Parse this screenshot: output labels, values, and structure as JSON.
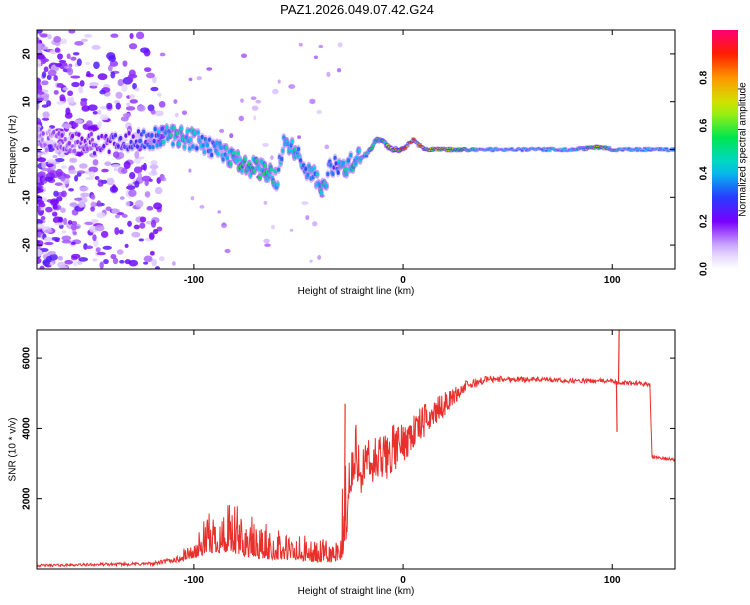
{
  "title": "PAZ1.2026.049.07.42.G24",
  "chart_data": [
    {
      "type": "heatmap",
      "name": "spectrogram",
      "title": "PAZ1.2026.049.07.42.G24",
      "xlabel": "Height of straight line (km)",
      "ylabel": "Frequency (Hz)",
      "xlim": [
        -175,
        130
      ],
      "ylim": [
        -25,
        25
      ],
      "xticks": [
        -100,
        0,
        100
      ],
      "yticks": [
        -20,
        -10,
        0,
        10,
        20
      ],
      "colorbar": {
        "label": "Normalized spectral amplitude",
        "range": [
          0,
          1
        ],
        "ticks": [
          0.0,
          0.2,
          0.4,
          0.6,
          0.8
        ]
      },
      "ridge": {
        "x": [
          -175,
          -160,
          -140,
          -120,
          -110,
          -100,
          -90,
          -80,
          -70,
          -60,
          -57,
          -52,
          -47,
          -42,
          -38,
          -35,
          -33,
          -28,
          -22,
          -17,
          -13,
          -10,
          -6,
          0,
          5,
          10,
          20,
          40,
          60,
          80,
          95,
          100,
          110,
          130
        ],
        "freq": [
          2,
          1.5,
          1,
          2.5,
          3,
          2,
          0,
          -2,
          -4,
          -6,
          2,
          0,
          -4,
          -6,
          -8,
          -4,
          -3,
          -4,
          -2,
          -1,
          2,
          2,
          0,
          0,
          2,
          0,
          0,
          0,
          0,
          0,
          0.5,
          0,
          0,
          0
        ],
        "amp": [
          0.15,
          0.18,
          0.25,
          0.35,
          0.5,
          0.45,
          0.4,
          0.55,
          0.55,
          0.5,
          0.4,
          0.5,
          0.4,
          0.45,
          0.55,
          0.35,
          0.35,
          0.5,
          0.5,
          0.45,
          0.6,
          0.55,
          0.7,
          0.95,
          0.9,
          0.8,
          0.75,
          0.4,
          0.4,
          0.45,
          0.75,
          0.5,
          0.4,
          0.4
        ]
      }
    },
    {
      "type": "line",
      "name": "snr",
      "xlabel": "Height of straight line (km)",
      "ylabel": "SNR (10 * v/v)",
      "xlim": [
        -175,
        130
      ],
      "ylim": [
        0,
        6800
      ],
      "xticks": [
        -100,
        0,
        100
      ],
      "yticks": [
        2000,
        4000,
        6000
      ],
      "color": "#e8302d",
      "envelope": {
        "x": [
          -175,
          -120,
          -110,
          -100,
          -95,
          -90,
          -80,
          -70,
          -60,
          -50,
          -40,
          -30,
          -28,
          -25,
          -24,
          -20,
          -15,
          -10,
          -5,
          0,
          5,
          10,
          20,
          30,
          40,
          60,
          80,
          100,
          102,
          104,
          106,
          110,
          118,
          119,
          130
        ],
        "base": [
          100,
          150,
          250,
          350,
          500,
          600,
          550,
          400,
          350,
          300,
          250,
          250,
          800,
          2000,
          2500,
          2800,
          3000,
          3100,
          3400,
          3600,
          3900,
          4200,
          4700,
          5200,
          5400,
          5400,
          5350,
          5350,
          5300,
          5250,
          5300,
          5300,
          5250,
          3200,
          3100
        ],
        "noise": [
          40,
          60,
          100,
          200,
          450,
          600,
          650,
          500,
          400,
          350,
          300,
          300,
          1500,
          1400,
          900,
          900,
          1000,
          900,
          900,
          700,
          700,
          600,
          400,
          200,
          120,
          90,
          80,
          80,
          80,
          80,
          80,
          80,
          80,
          60,
          60
        ]
      },
      "spikes": [
        {
          "x": -28,
          "y": 4700
        },
        {
          "x": 103,
          "y": 6800
        },
        {
          "x": 102,
          "y": 3900
        }
      ]
    }
  ]
}
